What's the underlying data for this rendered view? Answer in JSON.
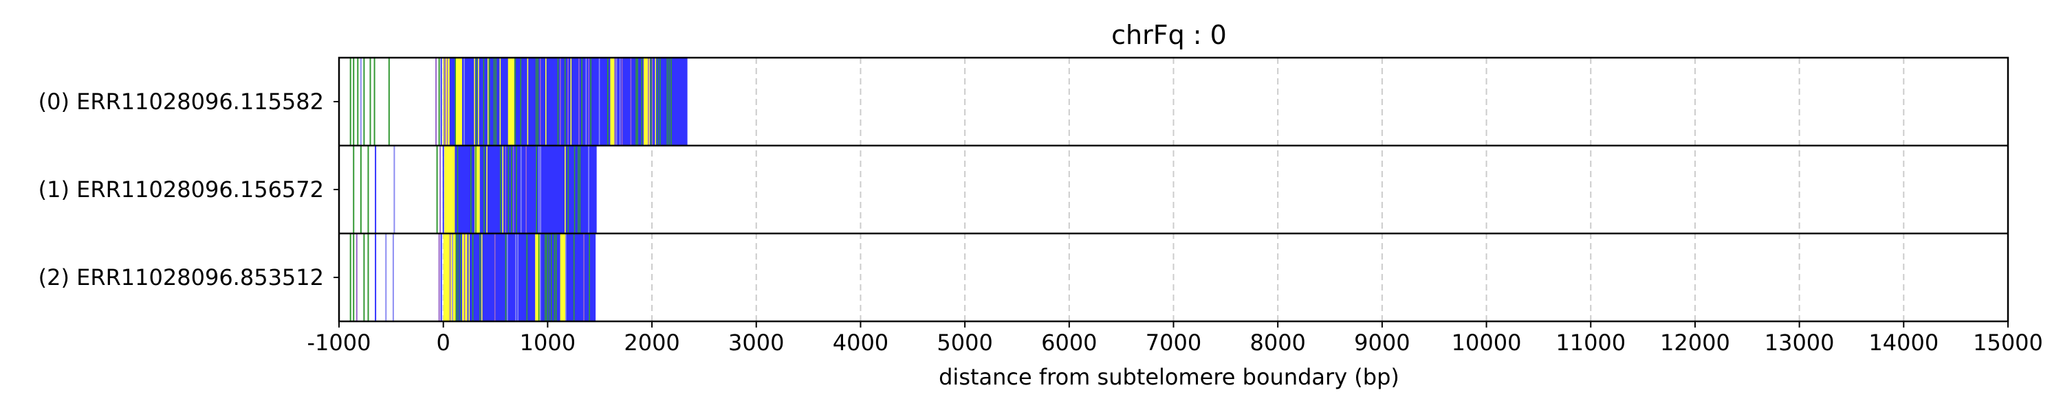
{
  "chart_data": {
    "type": "heatmap",
    "title": "chrFq : 0",
    "xlabel": "distance from subtelomere boundary (bp)",
    "ylabel": "",
    "xlim": [
      -1000,
      15000
    ],
    "x_ticks": [
      -1000,
      0,
      1000,
      2000,
      3000,
      4000,
      5000,
      6000,
      7000,
      8000,
      9000,
      10000,
      11000,
      12000,
      13000,
      14000,
      15000
    ],
    "x_tick_labels": [
      "-1000",
      "0",
      "1000",
      "2000",
      "3000",
      "4000",
      "5000",
      "6000",
      "7000",
      "8000",
      "9000",
      "10000",
      "11000",
      "12000",
      "13000",
      "14000",
      "15000"
    ],
    "grid": "x dashed",
    "colors": {
      "blue": "#3333ff",
      "green": "#339933",
      "yellow": "#ffff33",
      "purple": "#9966cc",
      "light_blue": "#8c8cf2",
      "grid": "#cccccc",
      "frame": "#000000"
    },
    "rows": [
      {
        "label": "(0) ERR11028096.115582",
        "read_end": 2340,
        "dense_start": 0,
        "dense_end": 2200,
        "yellow_runs": [
          [
            10,
            60
          ],
          [
            120,
            180
          ],
          [
            620,
            680
          ],
          [
            1600,
            1640
          ],
          [
            1920,
            1980
          ]
        ],
        "scattered_marks": [
          {
            "x": -890,
            "c": "green"
          },
          {
            "x": -860,
            "c": "green"
          },
          {
            "x": -820,
            "c": "green"
          },
          {
            "x": -790,
            "c": "light_blue"
          },
          {
            "x": -760,
            "c": "green"
          },
          {
            "x": -700,
            "c": "green"
          },
          {
            "x": -660,
            "c": "green"
          },
          {
            "x": -520,
            "c": "green"
          },
          {
            "x": -70,
            "c": "purple"
          },
          {
            "x": -40,
            "c": "green"
          },
          {
            "x": -20,
            "c": "blue"
          }
        ]
      },
      {
        "label": "(1) ERR11028096.156572",
        "read_end": 1470,
        "dense_start": 40,
        "dense_end": 1470,
        "yellow_runs": [
          [
            10,
            110
          ],
          [
            300,
            350
          ]
        ],
        "scattered_marks": [
          {
            "x": -860,
            "c": "green"
          },
          {
            "x": -790,
            "c": "green"
          },
          {
            "x": -720,
            "c": "green"
          },
          {
            "x": -650,
            "c": "blue"
          },
          {
            "x": -470,
            "c": "light_blue"
          },
          {
            "x": -60,
            "c": "green"
          },
          {
            "x": -30,
            "c": "purple"
          },
          {
            "x": 0,
            "c": "blue"
          }
        ]
      },
      {
        "label": "(2) ERR11028096.853512",
        "read_end": 1460,
        "dense_start": 50,
        "dense_end": 1460,
        "yellow_runs": [
          [
            0,
            120
          ],
          [
            180,
            230
          ],
          [
            880,
            930
          ],
          [
            1120,
            1170
          ]
        ],
        "scattered_marks": [
          {
            "x": -890,
            "c": "green"
          },
          {
            "x": -860,
            "c": "green"
          },
          {
            "x": -830,
            "c": "purple"
          },
          {
            "x": -760,
            "c": "green"
          },
          {
            "x": -720,
            "c": "green"
          },
          {
            "x": -650,
            "c": "blue"
          },
          {
            "x": -550,
            "c": "light_blue"
          },
          {
            "x": -480,
            "c": "light_blue"
          },
          {
            "x": -40,
            "c": "purple"
          },
          {
            "x": -20,
            "c": "blue"
          }
        ]
      }
    ]
  }
}
